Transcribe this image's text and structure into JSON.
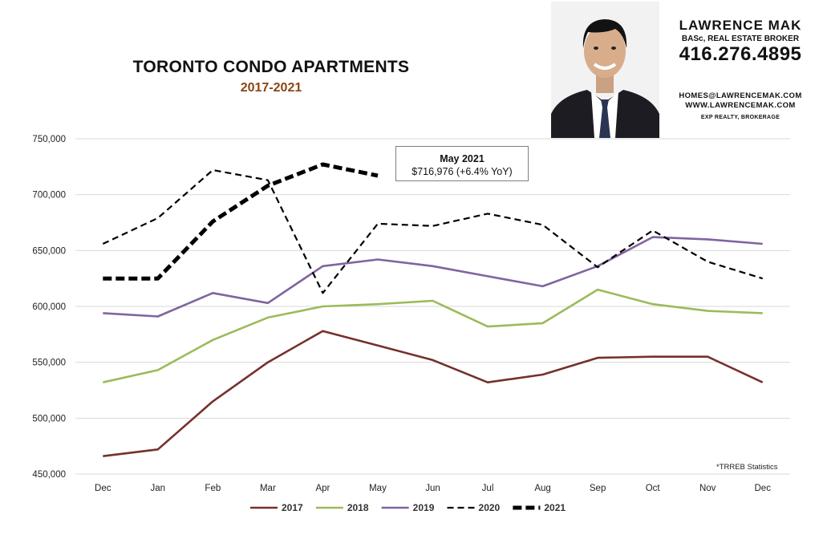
{
  "header": {
    "title": "TORONTO CONDO APARTMENTS",
    "subtitle": "2017-2021"
  },
  "agent": {
    "name": "LAWRENCE MAK",
    "credentials": "BASc, REAL ESTATE BROKER",
    "phone": "416.276.4895",
    "email": "HOMES@LAWRENCEMAK.COM",
    "website": "WWW.LAWRENCEMAK.COM",
    "brokerage": "EXP REALTY, BROKERAGE"
  },
  "callout": {
    "line1": "May 2021",
    "line2": "$716,976  (+6.4%  YoY)"
  },
  "source_note": "*TRREB Statistics",
  "colors": {
    "2017": "#76302d",
    "2018": "#9bbb59",
    "2019": "#8064a2",
    "2020": "#000000",
    "2021": "#000000",
    "grid": "#d9d9d9"
  },
  "chart_data": {
    "type": "line",
    "title": "TORONTO CONDO APARTMENTS",
    "subtitle": "2017-2021",
    "categories": [
      "Dec",
      "Jan",
      "Feb",
      "Mar",
      "Apr",
      "May",
      "Jun",
      "Jul",
      "Aug",
      "Sep",
      "Oct",
      "Nov",
      "Dec"
    ],
    "ylim": [
      450000,
      750000
    ],
    "yticks": [
      450000,
      500000,
      550000,
      600000,
      650000,
      700000,
      750000
    ],
    "ytick_labels": [
      "450,000",
      "500,000",
      "550,000",
      "600,000",
      "650,000",
      "700,000",
      "750,000"
    ],
    "grid": "horizontal",
    "legend_position": "bottom",
    "series": [
      {
        "name": "2017",
        "style": "solid",
        "values": [
          466000,
          472000,
          515000,
          550000,
          578000,
          565000,
          552000,
          532000,
          539000,
          554000,
          555000,
          555000,
          532000
        ]
      },
      {
        "name": "2018",
        "style": "solid",
        "values": [
          532000,
          543000,
          570000,
          590000,
          600000,
          602000,
          605000,
          582000,
          585000,
          615000,
          602000,
          596000,
          594000
        ]
      },
      {
        "name": "2019",
        "style": "solid",
        "values": [
          594000,
          591000,
          612000,
          603000,
          636000,
          642000,
          636000,
          627000,
          618000,
          636000,
          662000,
          660000,
          656000
        ]
      },
      {
        "name": "2020",
        "style": "dashed",
        "values": [
          656000,
          679000,
          722000,
          713000,
          612000,
          674000,
          672000,
          683000,
          673000,
          635000,
          668000,
          640000,
          625000
        ]
      },
      {
        "name": "2021",
        "style": "dashed-bold",
        "values": [
          625000,
          625000,
          676000,
          708000,
          727000,
          717000,
          null,
          null,
          null,
          null,
          null,
          null,
          null
        ]
      }
    ],
    "annotations": [
      {
        "text": "May 2021 $716,976 (+6.4% YoY)",
        "category": "May",
        "series": "2021",
        "value": 716976
      }
    ]
  }
}
